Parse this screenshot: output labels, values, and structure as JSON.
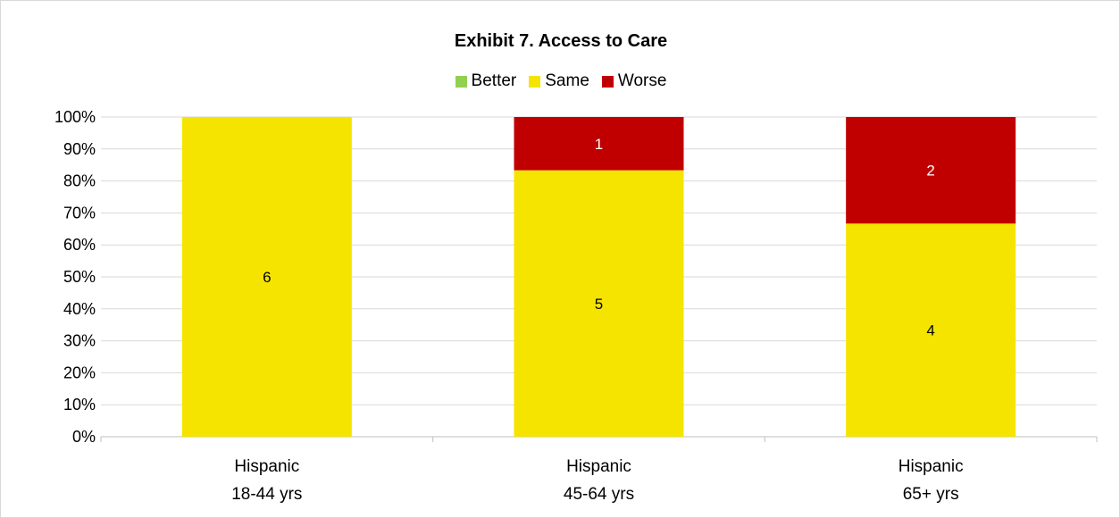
{
  "chart_data": {
    "type": "bar",
    "stacked": "percent",
    "title": "Exhibit 7. Access to Care",
    "xlabel": "",
    "ylabel": "",
    "ylim": [
      0,
      100
    ],
    "y_ticks": [
      "0%",
      "10%",
      "20%",
      "30%",
      "40%",
      "50%",
      "60%",
      "70%",
      "80%",
      "90%",
      "100%"
    ],
    "legend_position": "top",
    "grid": true,
    "categories": [
      [
        "Hispanic",
        "18-44 yrs"
      ],
      [
        "Hispanic",
        "45-64 yrs"
      ],
      [
        "Hispanic",
        "65+ yrs"
      ]
    ],
    "series": [
      {
        "name": "Better",
        "color": "#92d050",
        "values": [
          0,
          0,
          0
        ]
      },
      {
        "name": "Same",
        "color": "#f5e400",
        "values": [
          6,
          5,
          4
        ]
      },
      {
        "name": "Worse",
        "color": "#c00000",
        "values": [
          0,
          1,
          2
        ]
      }
    ]
  }
}
